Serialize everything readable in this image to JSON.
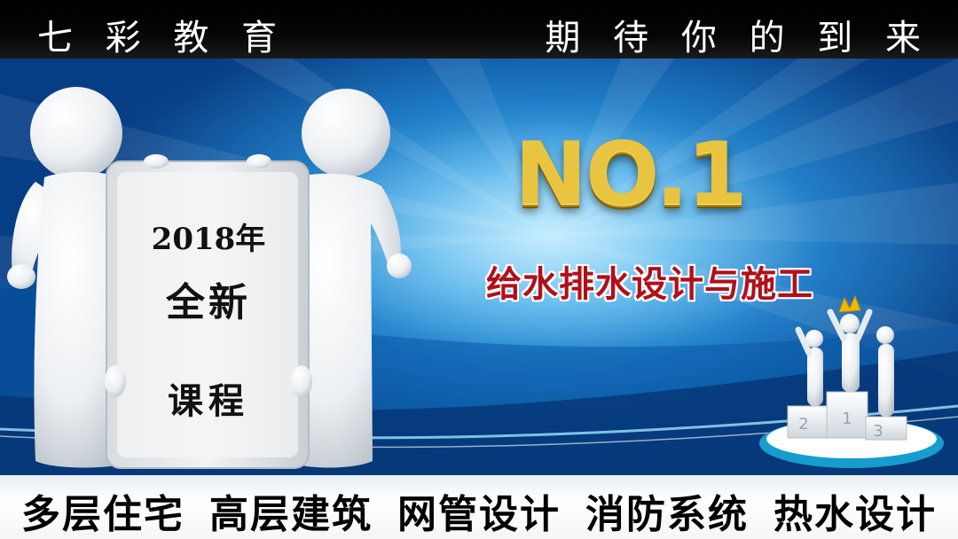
{
  "header": {
    "brand": "七 彩 教 育",
    "slogan": "期 待 你 的 到 来"
  },
  "board": {
    "year": "2018年",
    "new_label": "全新",
    "course_label": "课程"
  },
  "headline": {
    "rank": "NO.1",
    "subtitle": "给水排水设计与施工"
  },
  "podium": {
    "labels": [
      "2",
      "1",
      "3"
    ]
  },
  "topics": [
    "多层住宅",
    "高层建筑",
    "网管设计",
    "消防系统",
    "热水设计"
  ],
  "colors": {
    "top_bar": "#000000",
    "background_blue": "#0b6fc0",
    "headline_gold": "#e8c440",
    "subtitle_red": "#b0101a"
  }
}
